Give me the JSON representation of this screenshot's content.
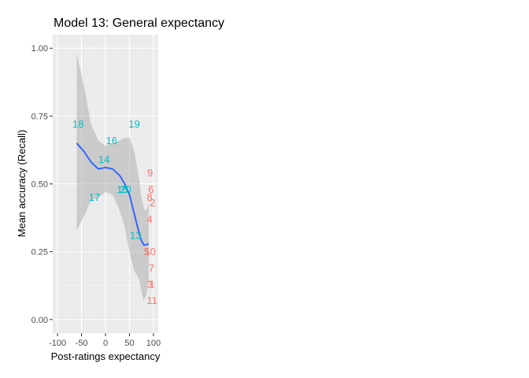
{
  "chart_data": {
    "type": "scatter",
    "title": "Model 13: General expectancy",
    "xlabel": "Post-ratings expectancy",
    "ylabel": "Mean accuracy (Recall)",
    "xlim": [
      -110,
      110
    ],
    "ylim": [
      -0.05,
      1.05
    ],
    "x_ticks": [
      -100,
      -50,
      0,
      50,
      100
    ],
    "x_tick_labels": [
      "-100",
      "-50",
      "0",
      "50",
      "100"
    ],
    "y_ticks": [
      0,
      0.25,
      0.5,
      0.75,
      1.0
    ],
    "y_tick_labels": [
      "0.00",
      "0.25",
      "0.50",
      "0.75",
      "1.00"
    ],
    "grid": true,
    "panel_background": "#ebebeb",
    "colors": {
      "group_a": "#f8766d",
      "group_b": "#00bfc4",
      "smooth_line": "#3366ff",
      "ribbon": "#999999"
    },
    "points": [
      {
        "label": "18",
        "x": -57,
        "y": 0.72,
        "group": "b"
      },
      {
        "label": "19",
        "x": 60,
        "y": 0.72,
        "group": "b"
      },
      {
        "label": "16",
        "x": 13,
        "y": 0.66,
        "group": "b"
      },
      {
        "label": "14",
        "x": -3,
        "y": 0.59,
        "group": "b"
      },
      {
        "label": "17",
        "x": -23,
        "y": 0.45,
        "group": "b"
      },
      {
        "label": "15",
        "x": 35,
        "y": 0.48,
        "group": "b"
      },
      {
        "label": "20",
        "x": 42,
        "y": 0.48,
        "group": "b"
      },
      {
        "label": "13",
        "x": 63,
        "y": 0.31,
        "group": "b"
      },
      {
        "label": "9",
        "x": 93,
        "y": 0.54,
        "group": "a"
      },
      {
        "label": "6",
        "x": 95,
        "y": 0.48,
        "group": "a"
      },
      {
        "label": "8",
        "x": 92,
        "y": 0.45,
        "group": "a"
      },
      {
        "label": "2",
        "x": 98,
        "y": 0.43,
        "group": "a"
      },
      {
        "label": "4",
        "x": 92,
        "y": 0.37,
        "group": "a"
      },
      {
        "label": "5",
        "x": 86,
        "y": 0.25,
        "group": "a"
      },
      {
        "label": "10",
        "x": 93,
        "y": 0.25,
        "group": "a"
      },
      {
        "label": "7",
        "x": 96,
        "y": 0.19,
        "group": "a"
      },
      {
        "label": "3",
        "x": 93,
        "y": 0.13,
        "group": "a"
      },
      {
        "label": "1",
        "x": 97,
        "y": 0.13,
        "group": "a"
      },
      {
        "label": "11",
        "x": 97,
        "y": 0.07,
        "group": "a"
      }
    ],
    "smooth": {
      "x": [
        -60,
        -45,
        -30,
        -15,
        0,
        15,
        30,
        40,
        50,
        60,
        70,
        75,
        80,
        85,
        90
      ],
      "y": [
        0.65,
        0.62,
        0.58,
        0.555,
        0.56,
        0.555,
        0.53,
        0.5,
        0.46,
        0.39,
        0.32,
        0.29,
        0.275,
        0.275,
        0.28
      ],
      "upper": [
        0.98,
        0.86,
        0.72,
        0.66,
        0.64,
        0.65,
        0.66,
        0.67,
        0.67,
        0.62,
        0.52,
        0.45,
        0.41,
        0.4,
        0.43
      ],
      "lower": [
        0.33,
        0.38,
        0.44,
        0.45,
        0.47,
        0.46,
        0.4,
        0.34,
        0.25,
        0.18,
        0.15,
        0.1,
        0.07,
        0.09,
        0.14
      ]
    }
  }
}
